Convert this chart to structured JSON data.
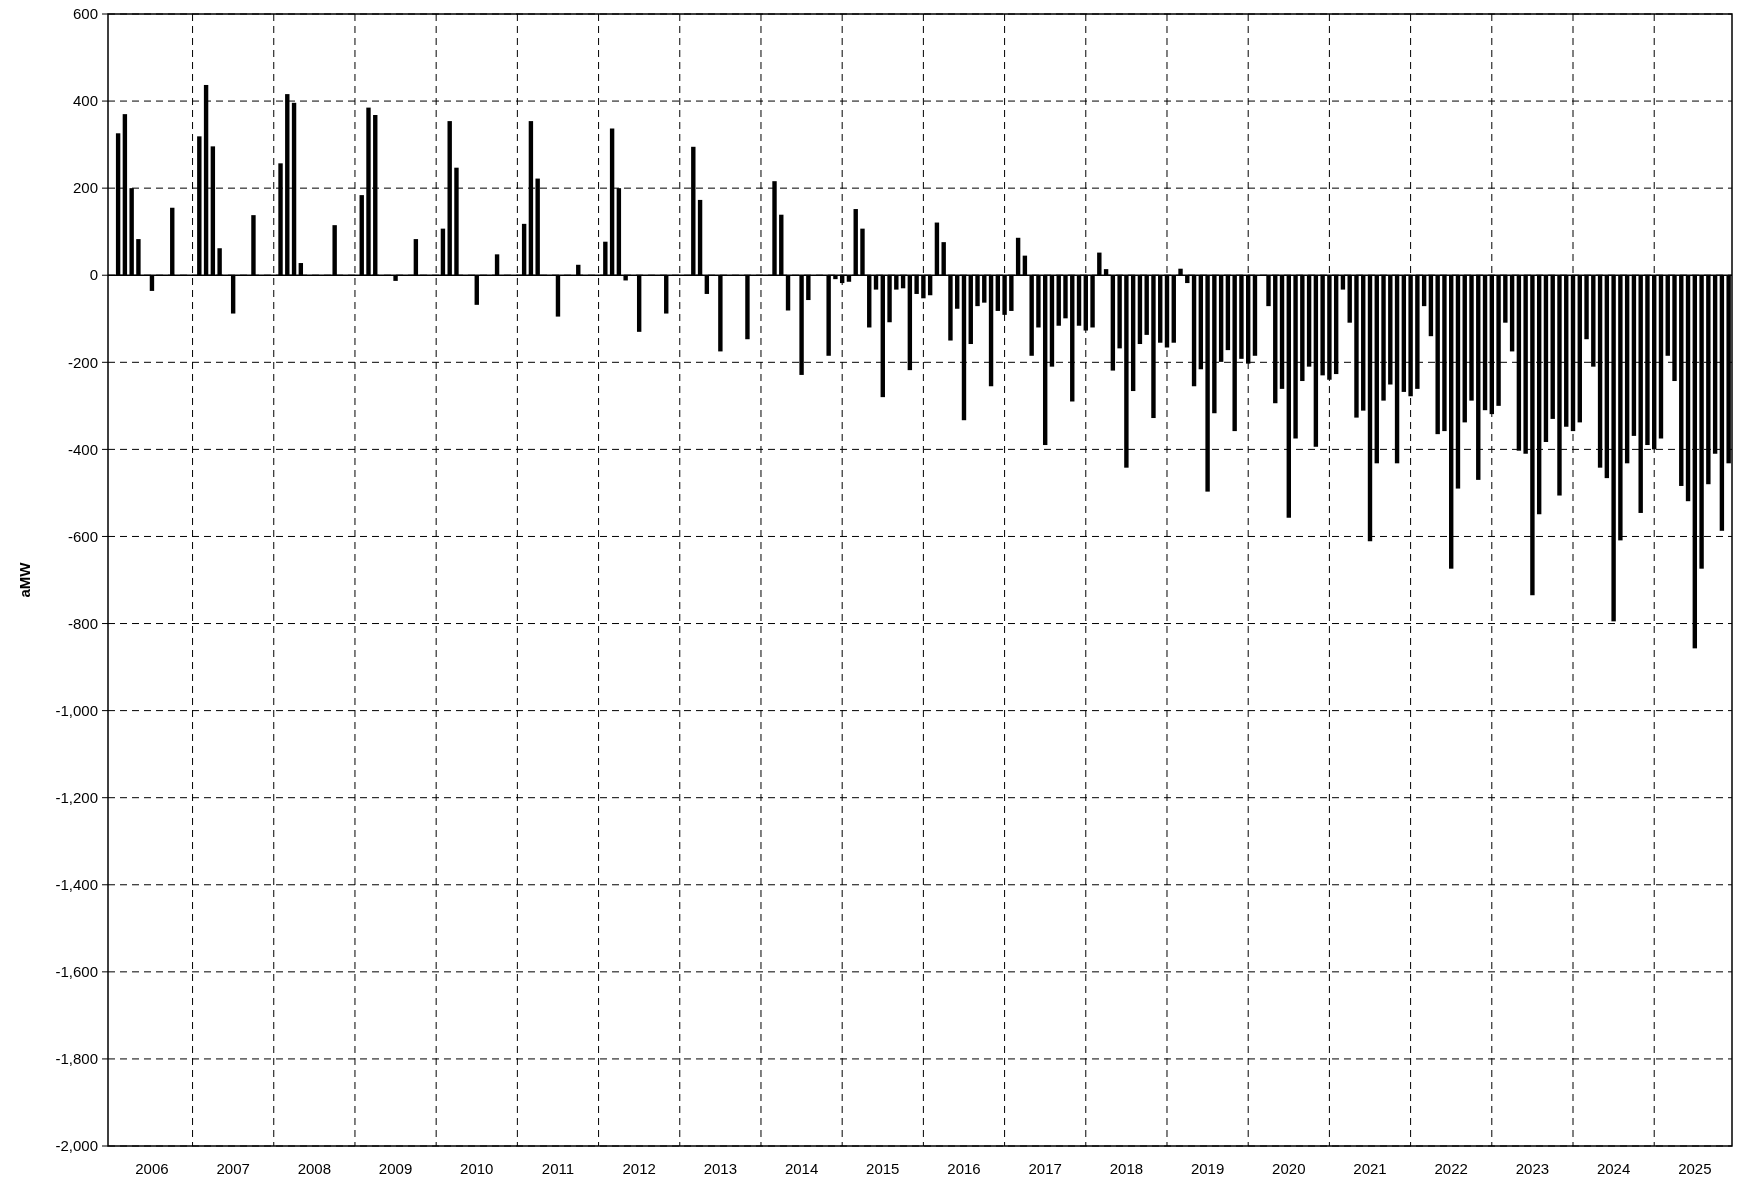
{
  "chart_data": {
    "type": "bar",
    "ylabel": "aMW",
    "categories": [
      null,
      null,
      null,
      null,
      null,
      null,
      "2006",
      null,
      null,
      null,
      null,
      null,
      null,
      null,
      null,
      null,
      null,
      null,
      "2007",
      null,
      null,
      null,
      null,
      null,
      null,
      null,
      null,
      null,
      null,
      null,
      "2008",
      null,
      null,
      null,
      null,
      null,
      null,
      null,
      null,
      null,
      null,
      null,
      "2009",
      null,
      null,
      null,
      null,
      null,
      null,
      null,
      null,
      null,
      null,
      null,
      "2010",
      null,
      null,
      null,
      null,
      null,
      null,
      null,
      null,
      null,
      null,
      null,
      "2011",
      null,
      null,
      null,
      null,
      null,
      null,
      null,
      null,
      null,
      null,
      null,
      "2012",
      null,
      null,
      null,
      null,
      null,
      null,
      null,
      null,
      null,
      null,
      null,
      "2013",
      null,
      null,
      null,
      null,
      null,
      null,
      null,
      null,
      null,
      null,
      null,
      "2014",
      null,
      null,
      null,
      null,
      null,
      null,
      null,
      null,
      null,
      null,
      null,
      "2015",
      null,
      null,
      null,
      null,
      null,
      null,
      null,
      null,
      null,
      null,
      null,
      "2016",
      null,
      null,
      null,
      null,
      null,
      null,
      null,
      null,
      null,
      null,
      null,
      "2017",
      null,
      null,
      null,
      null,
      null,
      null,
      null,
      null,
      null,
      null,
      null,
      "2018",
      null,
      null,
      null,
      null,
      null,
      null,
      null,
      null,
      null,
      null,
      null,
      "2019",
      null,
      null,
      null,
      null,
      null,
      null,
      null,
      null,
      null,
      null,
      null,
      "2020",
      null,
      null,
      null,
      null,
      null,
      null,
      null,
      null,
      null,
      null,
      null,
      "2021",
      null,
      null,
      null,
      null,
      null,
      null,
      null,
      null,
      null,
      null,
      null,
      "2022",
      null,
      null,
      null,
      null,
      null,
      null,
      null,
      null,
      null,
      null,
      null,
      "2023",
      null,
      null,
      null,
      null,
      null,
      null,
      null,
      null,
      null,
      null,
      null,
      "2024",
      null,
      null,
      null,
      null,
      null,
      null,
      null,
      null,
      null,
      null,
      null,
      "2025",
      null,
      null,
      null,
      null,
      null
    ],
    "values": [
      0,
      326,
      370,
      200,
      83,
      0,
      -36,
      0,
      0,
      155,
      0,
      0,
      0,
      319,
      437,
      296,
      62,
      0,
      -88,
      0,
      0,
      138,
      0,
      0,
      0,
      257,
      416,
      396,
      28,
      0,
      0,
      0,
      0,
      115,
      0,
      0,
      0,
      184,
      385,
      368,
      0,
      0,
      -13,
      0,
      0,
      83,
      0,
      0,
      0,
      107,
      354,
      247,
      0,
      0,
      -68,
      0,
      0,
      48,
      0,
      0,
      0,
      118,
      354,
      222,
      0,
      0,
      -95,
      0,
      0,
      24,
      0,
      0,
      0,
      77,
      337,
      200,
      -12,
      0,
      -130,
      0,
      0,
      0,
      -88,
      0,
      0,
      0,
      295,
      173,
      -43,
      0,
      -175,
      0,
      0,
      0,
      -147,
      0,
      0,
      0,
      216,
      139,
      -81,
      0,
      -229,
      -57,
      0,
      0,
      -185,
      -9,
      -18,
      -15,
      152,
      107,
      -120,
      -33,
      -280,
      -108,
      -33,
      -30,
      -218,
      -43,
      -53,
      -46,
      121,
      76,
      -150,
      -77,
      -333,
      -158,
      -71,
      -63,
      -255,
      -82,
      -91,
      -82,
      86,
      45,
      -185,
      -120,
      -390,
      -210,
      -116,
      -99,
      -290,
      -116,
      -127,
      -120,
      52,
      14,
      -219,
      -168,
      -442,
      -266,
      -158,
      -137,
      -328,
      -155,
      -166,
      -155,
      15,
      -18,
      -255,
      -216,
      -497,
      -317,
      -199,
      -172,
      -358,
      -192,
      -203,
      -185,
      0,
      -71,
      -294,
      -261,
      -557,
      -375,
      -243,
      -210,
      -394,
      -230,
      -240,
      -227,
      -33,
      -109,
      -327,
      -311,
      -611,
      -432,
      -288,
      -251,
      -432,
      -268,
      -278,
      -261,
      -71,
      -140,
      -365,
      -358,
      -674,
      -490,
      -338,
      -288,
      -470,
      -310,
      -319,
      -300,
      -109,
      -175,
      -403,
      -410,
      -735,
      -549,
      -383,
      -330,
      -506,
      -348,
      -358,
      -338,
      -147,
      -210,
      -442,
      -466,
      -795,
      -609,
      -432,
      -369,
      -546,
      -390,
      -400,
      -375,
      -185,
      -243,
      -484,
      -519,
      -857,
      -674,
      -480,
      -410,
      -587,
      -432
    ],
    "color": "#000000",
    "ylim": [
      -2000,
      600
    ],
    "yticks": [
      {
        "value": -2000,
        "label": "-2,000"
      },
      {
        "value": -1800,
        "label": "-1,800"
      },
      {
        "value": -1600,
        "label": "-1,600"
      },
      {
        "value": -1400,
        "label": "-1,400"
      },
      {
        "value": -1200,
        "label": "-1,200"
      },
      {
        "value": -1000,
        "label": "-1,000"
      },
      -800,
      -600,
      -400,
      -200,
      0,
      200,
      400,
      600
    ],
    "grid": true
  }
}
